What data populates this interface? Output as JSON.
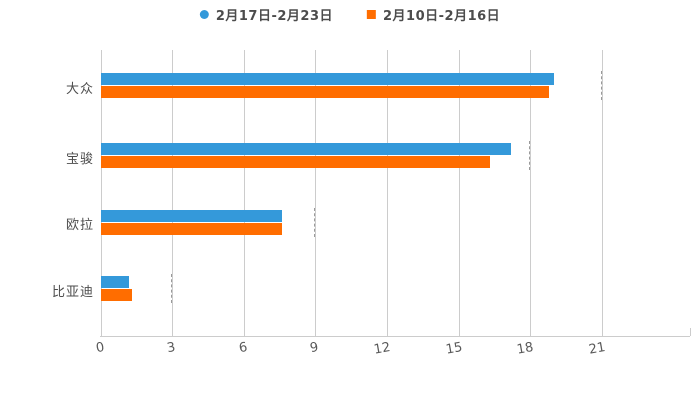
{
  "legend": {
    "items": [
      {
        "label": "2月17日-2月23日",
        "color": "#3499da",
        "marker": "circle"
      },
      {
        "label": "2月10日-2月16日",
        "color": "#ff6d00",
        "marker": "square"
      }
    ]
  },
  "chart_data": {
    "type": "bar",
    "orientation": "horizontal",
    "title": "",
    "xlabel": "",
    "ylabel": "",
    "categories": [
      "大众",
      "宝骏",
      "欧拉",
      "比亚迪"
    ],
    "series": [
      {
        "name": "2月17日-2月23日",
        "color": "#3499da",
        "values": [
          19.0,
          17.2,
          7.6,
          1.2
        ]
      },
      {
        "name": "2月10日-2月16日",
        "color": "#ff6d00",
        "values": [
          18.8,
          16.3,
          7.6,
          1.3
        ]
      }
    ],
    "x_ticks": [
      0,
      3,
      6,
      9,
      12,
      15,
      18,
      21
    ],
    "xlim": [
      0,
      24.7
    ],
    "grid": true,
    "gridline_color": "#cccccc",
    "legend_position": "top-center",
    "background": "#ffffff"
  }
}
